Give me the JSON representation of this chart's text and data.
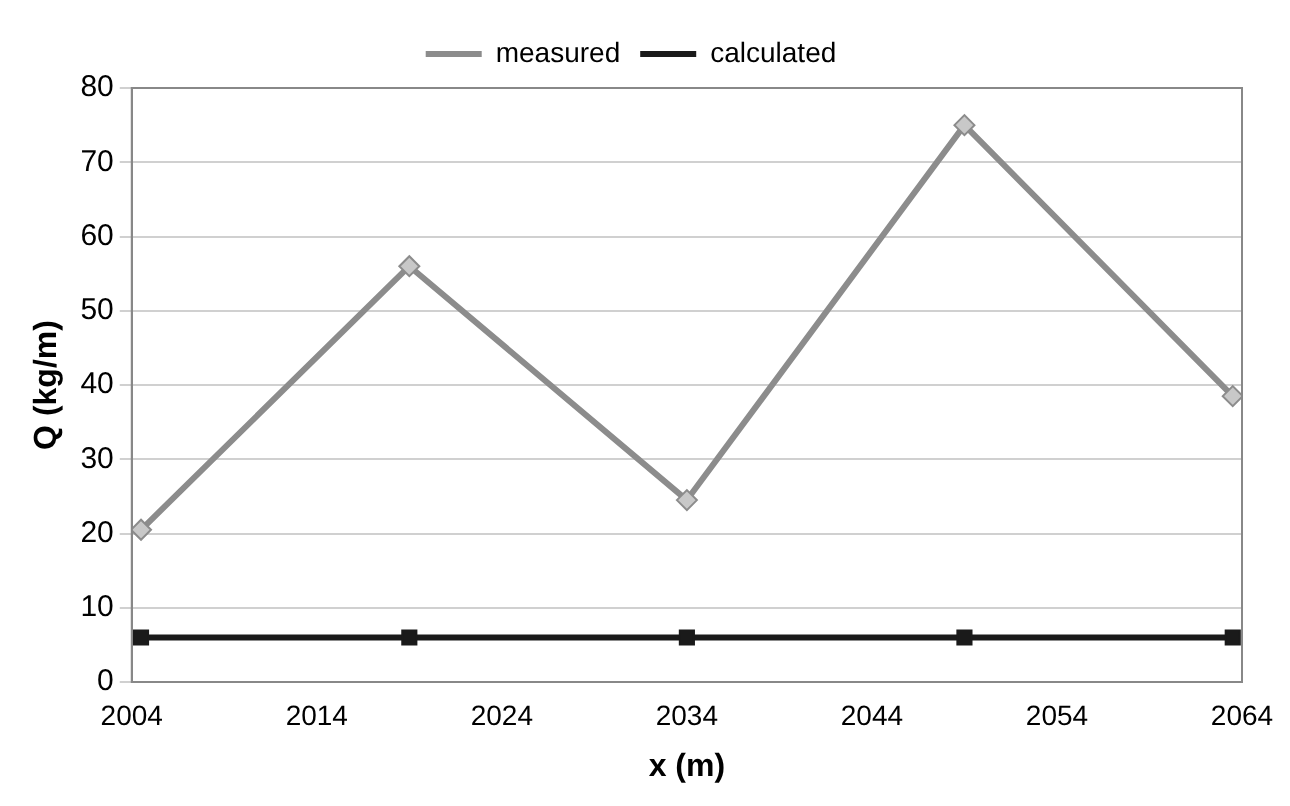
{
  "chart_data": {
    "type": "line",
    "xlabel": "x (m)",
    "ylabel": "Q (kg/m)",
    "x": [
      2004.5,
      2019,
      2034,
      2049,
      2063.5
    ],
    "series": [
      {
        "name": "measured",
        "color": "#8c8c8c",
        "values": [
          20.5,
          56,
          24.5,
          75,
          38.5
        ],
        "marker": "diamond"
      },
      {
        "name": "calculated",
        "color": "#1a1a1a",
        "values": [
          6,
          6,
          6,
          6,
          6
        ],
        "marker": "square"
      }
    ],
    "xlim": [
      2004,
      2064
    ],
    "xticks": [
      2004,
      2014,
      2024,
      2034,
      2044,
      2054,
      2064
    ],
    "ylim": [
      0,
      80
    ],
    "yticks": [
      0,
      10,
      20,
      30,
      40,
      50,
      60,
      70,
      80
    ],
    "grid": "y",
    "legend": "top",
    "line_style": "solid"
  }
}
